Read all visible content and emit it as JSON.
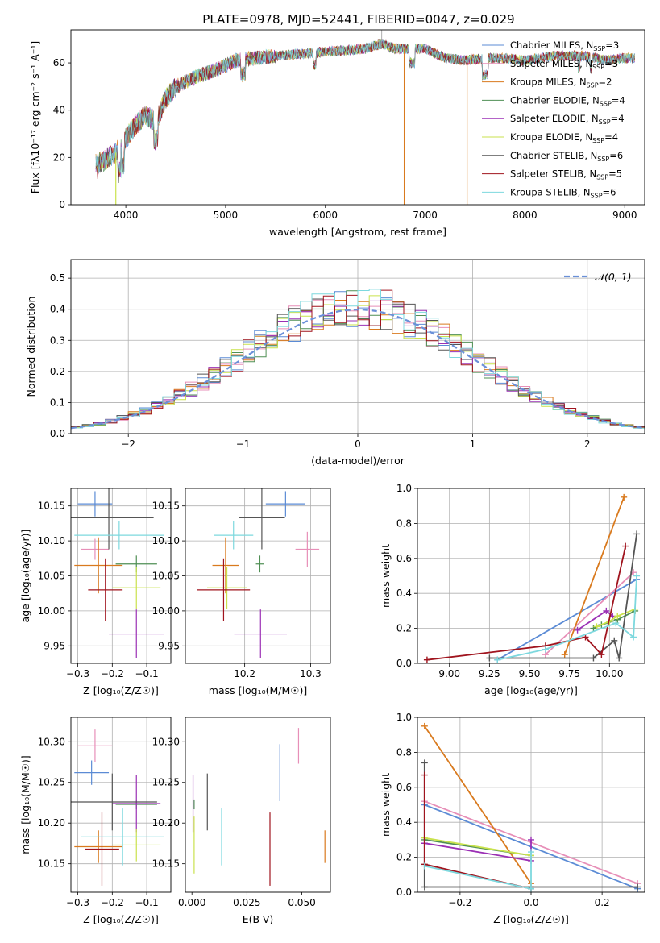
{
  "title": "PLATE=0978, MJD=52441, FIBERID=0047, z=0.029",
  "colors": {
    "chabrier_miles": "#5b8bd5",
    "salpeter_miles": "#e78fb8",
    "kroupa_miles": "#d97a1e",
    "chabrier_elodie": "#4f8f54",
    "salpeter_elodie": "#9b30b5",
    "kroupa_elodie": "#c9e24c",
    "chabrier_stelib": "#555555",
    "salpeter_stelib": "#a0141e",
    "kroupa_stelib": "#7dd8de",
    "normal_curve": "#6a90d8"
  },
  "chart_data": [
    {
      "id": "spectrum",
      "type": "line",
      "xlabel": "wavelength [Angstrom, rest frame]",
      "ylabel": "Flux [fλ10⁻¹⁷ erg cm⁻² s⁻¹ A⁻¹]",
      "xlim": [
        3450,
        9200
      ],
      "ylim": [
        0,
        74
      ],
      "xticks": [
        4000,
        5000,
        6000,
        7000,
        8000,
        9000
      ],
      "yticks": [
        0,
        20,
        40,
        60
      ],
      "legend_placement": "right",
      "series": [
        {
          "name": "Chabrier MILES, N_SSP=3",
          "key": "chabrier_miles"
        },
        {
          "name": "Salpeter MILES, N_SSP=3",
          "key": "salpeter_miles"
        },
        {
          "name": "Kroupa MILES, N_SSP=2",
          "key": "kroupa_miles"
        },
        {
          "name": "Chabrier ELODIE, N_SSP=4",
          "key": "chabrier_elodie"
        },
        {
          "name": "Salpeter ELODIE, N_SSP=4",
          "key": "salpeter_elodie"
        },
        {
          "name": "Kroupa ELODIE, N_SSP=4",
          "key": "kroupa_elodie"
        },
        {
          "name": "Chabrier STELIB, N_SSP=6",
          "key": "chabrier_stelib"
        },
        {
          "name": "Salpeter STELIB, N_SSP=5",
          "key": "salpeter_stelib"
        },
        {
          "name": "Kroupa STELIB, N_SSP=6",
          "key": "kroupa_stelib"
        }
      ],
      "continuum": {
        "x": [
          3700,
          3800,
          3900,
          4000,
          4100,
          4200,
          4300,
          4400,
          4500,
          4700,
          4900,
          5100,
          5300,
          5500,
          5800,
          6100,
          6400,
          6550,
          6700,
          7000,
          7200,
          7400,
          7600,
          7800,
          8000,
          8300,
          8600,
          8800,
          9000,
          9100
        ],
        "y": [
          17,
          19,
          22,
          28,
          34,
          38,
          35,
          45,
          50,
          54,
          57,
          61,
          62,
          63,
          64,
          65,
          66,
          68,
          66,
          66,
          62,
          61,
          62,
          62,
          61,
          63,
          63,
          61,
          62,
          62
        ]
      },
      "dropouts": [
        {
          "wavelength": 6790,
          "key": "kroupa_miles"
        },
        {
          "wavelength": 7420,
          "key": "kroupa_miles"
        },
        {
          "wavelength": 3900,
          "key": "kroupa_elodie"
        }
      ],
      "spike": {
        "wavelength": 6565,
        "flux": 74
      }
    },
    {
      "id": "residuals",
      "type": "histogram",
      "xlabel": "(data-model)/error",
      "ylabel": "Normed distribution",
      "xlim": [
        -2.5,
        2.5
      ],
      "ylim": [
        0,
        0.56
      ],
      "xticks": [
        -2,
        -1,
        0,
        1,
        2
      ],
      "yticks": [
        0.0,
        0.1,
        0.2,
        0.3,
        0.4,
        0.5
      ],
      "grid": true,
      "legend": "𝒩(0, 1)",
      "legend_placement": "top-right",
      "bin_width": 0.1
    },
    {
      "id": "age_vs_Z",
      "type": "errorbar",
      "xlabel": "Z [log₁₀(Z/Z☉)]",
      "ylabel": "age  [log₁₀(age/yr)]",
      "xlim": [
        -0.32,
        -0.03
      ],
      "ylim": [
        9.925,
        10.175
      ],
      "xticks": [
        -0.3,
        -0.2,
        -0.1
      ],
      "yticks": [
        9.95,
        10.0,
        10.05,
        10.1,
        10.15
      ],
      "grid": true,
      "points": [
        {
          "key": "chabrier_miles",
          "x": -0.25,
          "xerr": 0.05,
          "y": 10.153,
          "yerr": 0.018
        },
        {
          "key": "salpeter_miles",
          "x": -0.25,
          "xerr": 0.04,
          "y": 10.088,
          "yerr": 0.015
        },
        {
          "key": "kroupa_miles",
          "x": -0.24,
          "xerr": 0.07,
          "y": 10.065,
          "yerr": 0.04
        },
        {
          "key": "chabrier_elodie",
          "x": -0.13,
          "xerr": 0.06,
          "y": 10.067,
          "yerr": 0.012
        },
        {
          "key": "salpeter_elodie",
          "x": -0.13,
          "xerr": 0.08,
          "y": 9.967,
          "yerr": 0.035
        },
        {
          "key": "kroupa_elodie",
          "x": -0.13,
          "xerr": 0.07,
          "y": 10.033,
          "yerr": 0.03
        },
        {
          "key": "chabrier_stelib",
          "x": -0.21,
          "xerr": 0.13,
          "y": 10.133,
          "yerr": 0.045
        },
        {
          "key": "salpeter_stelib",
          "x": -0.22,
          "xerr": 0.05,
          "y": 10.03,
          "yerr": 0.045
        },
        {
          "key": "kroupa_stelib",
          "x": -0.18,
          "xerr": 0.13,
          "y": 10.108,
          "yerr": 0.02
        }
      ]
    },
    {
      "id": "age_vs_mass",
      "type": "errorbar",
      "xlabel": "mass [log₁₀(M/M☉)]",
      "ylabel": "",
      "xlim": [
        10.11,
        10.33
      ],
      "ylim": [
        9.925,
        10.175
      ],
      "xticks": [
        10.2,
        10.3
      ],
      "yticks": [
        9.95,
        10.0,
        10.05,
        10.1,
        10.15
      ],
      "grid": true,
      "points": [
        {
          "key": "chabrier_miles",
          "x": 10.262,
          "xerr": 0.03,
          "y": 10.153,
          "yerr": 0.018
        },
        {
          "key": "salpeter_miles",
          "x": 10.295,
          "xerr": 0.018,
          "y": 10.088,
          "yerr": 0.025
        },
        {
          "key": "kroupa_miles",
          "x": 10.171,
          "xerr": 0.02,
          "y": 10.065,
          "yerr": 0.04
        },
        {
          "key": "chabrier_elodie",
          "x": 10.223,
          "xerr": 0.006,
          "y": 10.067,
          "yerr": 0.012
        },
        {
          "key": "salpeter_elodie",
          "x": 10.224,
          "xerr": 0.04,
          "y": 9.967,
          "yerr": 0.035
        },
        {
          "key": "kroupa_elodie",
          "x": 10.173,
          "xerr": 0.03,
          "y": 10.033,
          "yerr": 0.03
        },
        {
          "key": "chabrier_stelib",
          "x": 10.226,
          "xerr": 0.035,
          "y": 10.133,
          "yerr": 0.045
        },
        {
          "key": "salpeter_stelib",
          "x": 10.168,
          "xerr": 0.04,
          "y": 10.03,
          "yerr": 0.045
        },
        {
          "key": "kroupa_stelib",
          "x": 10.183,
          "xerr": 0.03,
          "y": 10.108,
          "yerr": 0.02
        }
      ]
    },
    {
      "id": "weight_vs_age",
      "type": "line",
      "xlabel": "age  [log₁₀(age/yr)]",
      "ylabel": "mass weight",
      "xlim": [
        8.8,
        10.22
      ],
      "ylim": [
        0,
        1
      ],
      "xticks": [
        9.0,
        9.25,
        9.5,
        9.75,
        10.0
      ],
      "yticks": [
        0.0,
        0.2,
        0.4,
        0.6,
        0.8,
        1.0
      ],
      "grid": true,
      "series": [
        {
          "key": "chabrier_miles",
          "x": [
            9.3,
            10.17
          ],
          "y": [
            0.02,
            0.48
          ]
        },
        {
          "key": "salpeter_miles",
          "x": [
            9.6,
            10.15
          ],
          "y": [
            0.05,
            0.52
          ]
        },
        {
          "key": "kroupa_miles",
          "x": [
            9.72,
            10.09
          ],
          "y": [
            0.05,
            0.95
          ]
        },
        {
          "key": "chabrier_elodie",
          "x": [
            9.9,
            9.95,
            10.05,
            10.16
          ],
          "y": [
            0.2,
            0.22,
            0.25,
            0.3
          ]
        },
        {
          "key": "salpeter_elodie",
          "x": [
            9.8,
            9.98,
            10.02
          ],
          "y": [
            0.19,
            0.3,
            0.27
          ]
        },
        {
          "key": "kroupa_elodie",
          "x": [
            9.92,
            10.0,
            10.05,
            10.16
          ],
          "y": [
            0.21,
            0.24,
            0.27,
            0.31
          ]
        },
        {
          "key": "chabrier_stelib",
          "x": [
            9.25,
            9.9,
            10.03,
            10.06,
            10.17
          ],
          "y": [
            0.03,
            0.03,
            0.13,
            0.03,
            0.74
          ]
        },
        {
          "key": "salpeter_stelib",
          "x": [
            8.86,
            9.6,
            9.85,
            9.95,
            10.1
          ],
          "y": [
            0.02,
            0.1,
            0.15,
            0.05,
            0.67
          ]
        },
        {
          "key": "kroupa_stelib",
          "x": [
            9.3,
            9.6,
            10.04,
            10.15,
            10.17
          ],
          "y": [
            0.02,
            0.08,
            0.23,
            0.15,
            0.5
          ]
        }
      ]
    },
    {
      "id": "mass_vs_Z",
      "type": "errorbar",
      "xlabel": "Z [log₁₀(Z/Z☉)]",
      "ylabel": "mass [log₁₀(M/M☉)]",
      "xlim": [
        -0.32,
        -0.03
      ],
      "ylim": [
        10.115,
        10.33
      ],
      "xticks": [
        -0.3,
        -0.2,
        -0.1
      ],
      "yticks": [
        10.15,
        10.2,
        10.25,
        10.3
      ],
      "grid": true,
      "points": [
        {
          "key": "chabrier_miles",
          "x": -0.26,
          "xerr": 0.05,
          "y": 10.262,
          "yerr": 0.015
        },
        {
          "key": "salpeter_miles",
          "x": -0.25,
          "xerr": 0.05,
          "y": 10.295,
          "yerr": 0.02
        },
        {
          "key": "kroupa_miles",
          "x": -0.24,
          "xerr": 0.07,
          "y": 10.171,
          "yerr": 0.02
        },
        {
          "key": "chabrier_elodie",
          "x": -0.13,
          "xerr": 0.06,
          "y": 10.223,
          "yerr": 0.006
        },
        {
          "key": "salpeter_elodie",
          "x": -0.13,
          "xerr": 0.07,
          "y": 10.224,
          "yerr": 0.035
        },
        {
          "key": "kroupa_elodie",
          "x": -0.13,
          "xerr": 0.07,
          "y": 10.173,
          "yerr": 0.02
        },
        {
          "key": "chabrier_stelib",
          "x": -0.2,
          "xerr": 0.13,
          "y": 10.226,
          "yerr": 0.035
        },
        {
          "key": "salpeter_stelib",
          "x": -0.23,
          "xerr": 0.05,
          "y": 10.168,
          "yerr": 0.045
        },
        {
          "key": "kroupa_stelib",
          "x": -0.17,
          "xerr": 0.12,
          "y": 10.183,
          "yerr": 0.035
        }
      ]
    },
    {
      "id": "mass_vs_ebv",
      "type": "errorbar",
      "xlabel": "E(B-V)",
      "ylabel": "",
      "xlim": [
        -0.003,
        0.063
      ],
      "ylim": [
        10.115,
        10.33
      ],
      "xticks": [
        0.0,
        0.025,
        0.05
      ],
      "yticks": [
        10.15,
        10.2,
        10.25,
        10.3
      ],
      "grid": false,
      "points": [
        {
          "key": "chabrier_miles",
          "x": 0.04,
          "y": 10.262,
          "yerr": 0.035
        },
        {
          "key": "salpeter_miles",
          "x": 0.0485,
          "y": 10.295,
          "yerr": 0.022
        },
        {
          "key": "kroupa_miles",
          "x": 0.0605,
          "y": 10.171,
          "yerr": 0.02
        },
        {
          "key": "chabrier_elodie",
          "x": 0.001,
          "y": 10.223,
          "yerr": 0.006
        },
        {
          "key": "salpeter_elodie",
          "x": 0.0005,
          "y": 10.224,
          "yerr": 0.035
        },
        {
          "key": "kroupa_elodie",
          "x": 0.001,
          "y": 10.173,
          "yerr": 0.035
        },
        {
          "key": "chabrier_stelib",
          "x": 0.007,
          "y": 10.226,
          "yerr": 0.035
        },
        {
          "key": "salpeter_stelib",
          "x": 0.0355,
          "y": 10.168,
          "yerr": 0.045
        },
        {
          "key": "kroupa_stelib",
          "x": 0.0135,
          "y": 10.183,
          "yerr": 0.035
        }
      ]
    },
    {
      "id": "weight_vs_Z",
      "type": "line",
      "xlabel": "Z [log₁₀(Z/Z☉)]",
      "ylabel": "mass weight",
      "xlim": [
        -0.32,
        0.32
      ],
      "ylim": [
        0,
        1
      ],
      "xticks": [
        -0.2,
        0.0,
        0.2
      ],
      "yticks": [
        0.0,
        0.2,
        0.4,
        0.6,
        0.8,
        1.0
      ],
      "grid": true,
      "series": [
        {
          "key": "chabrier_miles",
          "x": [
            -0.3,
            0.3
          ],
          "y": [
            0.5,
            0.02
          ]
        },
        {
          "key": "salpeter_miles",
          "x": [
            -0.3,
            0.3
          ],
          "y": [
            0.52,
            0.05
          ]
        },
        {
          "key": "kroupa_miles",
          "x": [
            -0.3,
            0.0
          ],
          "y": [
            0.95,
            0.05
          ]
        },
        {
          "key": "chabrier_elodie",
          "x": [
            -0.3,
            0.0
          ],
          "y": [
            0.3,
            0.21
          ]
        },
        {
          "key": "salpeter_elodie",
          "x": [
            -0.3,
            0.0,
            0.0
          ],
          "y": [
            0.28,
            0.18,
            0.3
          ]
        },
        {
          "key": "kroupa_elodie",
          "x": [
            -0.3,
            0.0
          ],
          "y": [
            0.31,
            0.21
          ]
        },
        {
          "key": "chabrier_stelib",
          "x": [
            -0.3,
            -0.3,
            0.0,
            0.3
          ],
          "y": [
            0.74,
            0.03,
            0.03,
            0.03
          ]
        },
        {
          "key": "salpeter_stelib",
          "x": [
            -0.3,
            -0.3,
            0.0
          ],
          "y": [
            0.67,
            0.16,
            0.02
          ]
        },
        {
          "key": "kroupa_stelib",
          "x": [
            -0.3,
            0.0,
            0.0
          ],
          "y": [
            0.15,
            0.02,
            0.23
          ]
        }
      ]
    }
  ]
}
